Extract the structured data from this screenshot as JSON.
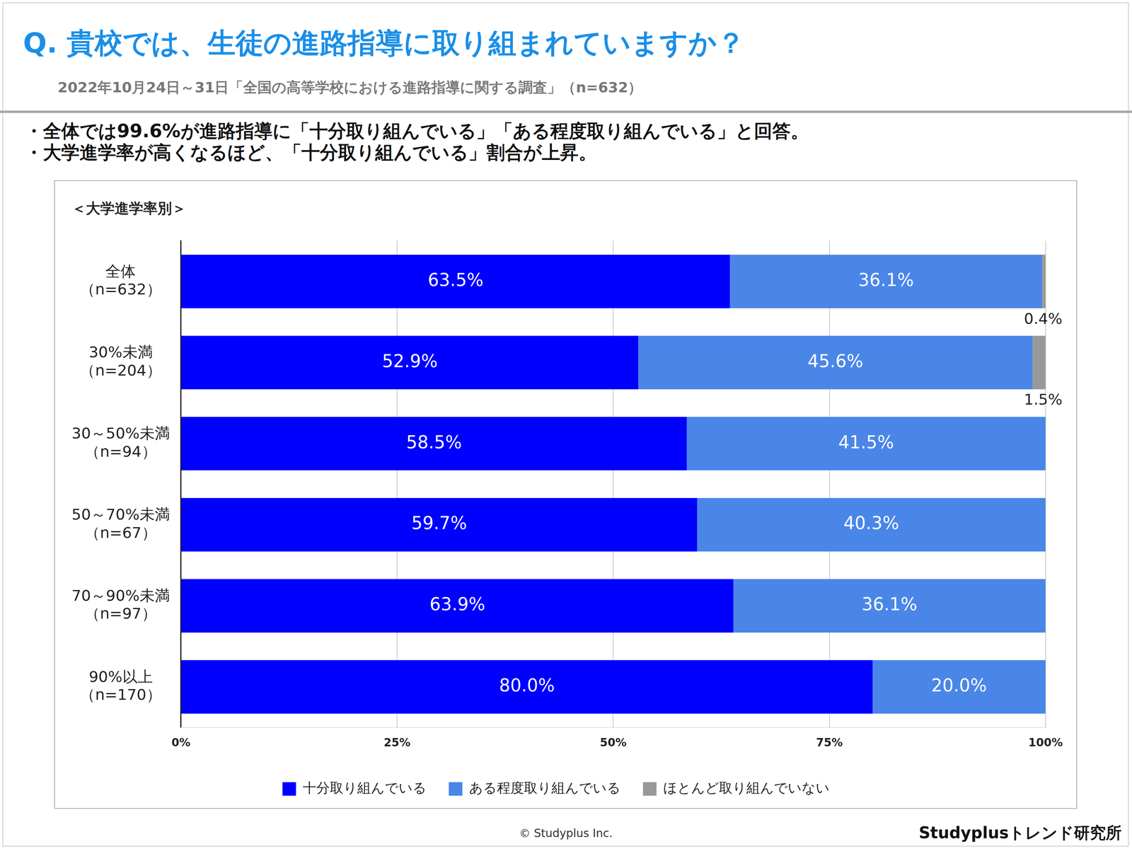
{
  "chart_data": {
    "type": "bar",
    "title": "Q. 貴校では、生徒の進路指導に取り組まれていますか？",
    "subtitle": "2022年10月24日～31日「全国の高等学校における進路指導に関する調査」（n=632）",
    "notes": [
      "・全体では99.6%が進路指導に「十分取り組んでいる」「ある程度取り組んでいる」と回答。",
      "・大学進学率が高くなるほど、「十分取り組んでいる」割合が上昇。"
    ],
    "ylabel": "＜大学進学率別＞",
    "orientation": "horizontal",
    "stacked": true,
    "grid": true,
    "legend": "bottom",
    "data_labels": true,
    "categories": [
      [
        "全体",
        "（n=632）"
      ],
      [
        "30%未満",
        "（n=204）"
      ],
      [
        "30～50%未満",
        "（n=94）"
      ],
      [
        "50～70%未満",
        "（n=67）"
      ],
      [
        "70～90%未満",
        "（n=97）"
      ],
      [
        "90%以上",
        "（n=170）"
      ]
    ],
    "series": [
      {
        "name": "十分取り組んでいる",
        "color": "#0000ff",
        "values": [
          63.5,
          52.9,
          58.5,
          59.7,
          63.9,
          80.0
        ],
        "value_labels": [
          "63.5%",
          "52.9%",
          "58.5%",
          "59.7%",
          "63.9%",
          "80.0%"
        ]
      },
      {
        "name": "ある程度取り組んでいる",
        "color": "#4a86e8",
        "values": [
          36.1,
          45.6,
          41.5,
          40.3,
          36.1,
          20.0
        ],
        "value_labels": [
          "36.1%",
          "45.6%",
          "41.5%",
          "40.3%",
          "36.1%",
          "20.0%"
        ]
      },
      {
        "name": "ほとんど取り組んでいない",
        "color": "#999999",
        "values": [
          0.4,
          1.5,
          0,
          0,
          0,
          0
        ],
        "value_labels": [
          "0.4%",
          "1.5%",
          null,
          null,
          null,
          null
        ]
      }
    ],
    "xlim": [
      0,
      100
    ],
    "xticks": [
      {
        "value": 0,
        "label": "0%"
      },
      {
        "value": 25,
        "label": "25%"
      },
      {
        "value": 50,
        "label": "50%"
      },
      {
        "value": 75,
        "label": "75%"
      },
      {
        "value": 100,
        "label": "100%"
      }
    ],
    "copyright": "© Studyplus Inc.",
    "credit": "Studyplusトレンド研究所"
  }
}
